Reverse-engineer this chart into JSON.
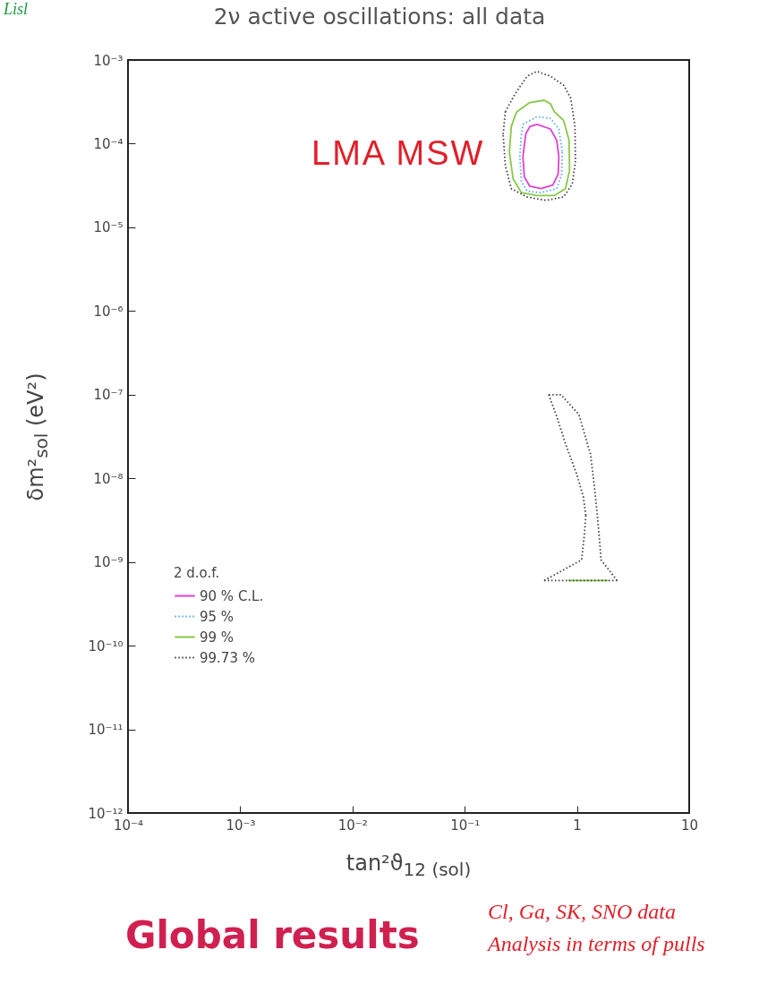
{
  "chart_data": {
    "type": "line",
    "title": "2ν active oscillations: all data",
    "xlabel": "tan²ϑ$_{12 (sol)}$",
    "ylabel": "δm²$_{sol}$ (eV²)",
    "legend_title": "2 d.o.f.",
    "log": "xy",
    "grid": false,
    "legend": "bottom left",
    "marker": "none",
    "xlim": [
      0.0001,
      10
    ],
    "xticks": [
      {
        "value": 0.0001,
        "label": "10⁻⁴"
      },
      {
        "value": 0.001,
        "label": "10⁻³"
      },
      {
        "value": 0.01,
        "label": "10⁻²"
      },
      {
        "value": 0.1,
        "label": "10⁻¹"
      },
      1,
      10
    ],
    "ylim": [
      1e-12,
      0.001
    ],
    "yticks": [
      {
        "value": 1e-12,
        "label": "10⁻¹²"
      },
      {
        "value": 1e-11,
        "label": "10⁻¹¹"
      },
      {
        "value": 1e-10,
        "label": "10⁻¹⁰"
      },
      {
        "value": 1e-09,
        "label": "10⁻⁹"
      },
      {
        "value": 1e-08,
        "label": "10⁻⁸"
      },
      {
        "value": 1e-07,
        "label": "10⁻⁷"
      },
      {
        "value": 1e-06,
        "label": "10⁻⁶"
      },
      {
        "value": 1e-05,
        "label": "10⁻⁵"
      },
      {
        "value": 0.0001,
        "label": "10⁻⁴"
      },
      {
        "value": 0.001,
        "label": "10⁻³"
      }
    ],
    "series": [
      {
        "name": "90 % C.L.",
        "color": "#e040d0",
        "line_style": "solid",
        "x": [
          0.44,
          0.58,
          0.66,
          0.69,
          null,
          0.69,
          0.68,
          0.61,
          0.48,
          0.38,
          0.34,
          0.33,
          null,
          0.33,
          0.35,
          0.38,
          0.44
        ],
        "values": [
          0.00017,
          0.00015,
          0.00011,
          7e-05,
          null,
          7e-05,
          4.3e-05,
          3.2e-05,
          2.9e-05,
          3.1e-05,
          4e-05,
          7e-05,
          null,
          7e-05,
          0.00013,
          0.00016,
          0.00017
        ]
      },
      {
        "name": "95 %",
        "color": "#50a8e8",
        "line_style": "dotted",
        "x": [
          0.33,
          0.44,
          0.58,
          0.69,
          0.74,
          null,
          0.74,
          0.73,
          0.66,
          0.48,
          0.36,
          0.32,
          0.31,
          null,
          0.31,
          0.32,
          0.33
        ],
        "values": [
          0.00017,
          0.00021,
          0.0002,
          0.00015,
          7.9e-05,
          null,
          7.9e-05,
          4.3e-05,
          2.9e-05,
          2.6e-05,
          2.7e-05,
          3.5e-05,
          7e-05,
          null,
          7e-05,
          0.00013,
          0.00017
        ]
      },
      {
        "name": "99 %",
        "color": "#88c848",
        "line_style": "solid",
        "x": [
          0.29,
          0.38,
          0.51,
          0.58,
          0.63,
          0.76,
          0.85,
          0.86,
          null,
          0.86,
          0.79,
          0.63,
          0.44,
          0.32,
          0.27,
          0.25,
          null,
          0.25,
          0.26,
          0.29,
          null,
          0.83,
          1.9
        ],
        "values": [
          0.00024,
          0.00031,
          0.00033,
          0.0003,
          0.00024,
          0.00019,
          0.00011,
          4.8e-05,
          null,
          4.8e-05,
          2.9e-05,
          2.4e-05,
          2.4e-05,
          2.6e-05,
          3.8e-05,
          7.9e-05,
          null,
          7.9e-05,
          0.00016,
          0.00024,
          null,
          6e-10,
          6e-10
        ]
      },
      {
        "name": "99.73 %",
        "color": "#404040",
        "line_style": "dotted",
        "x": [
          0.23,
          0.28,
          0.36,
          0.44,
          0.58,
          0.76,
          0.88,
          0.96,
          0.97,
          null,
          0.97,
          0.91,
          0.76,
          0.53,
          0.36,
          0.26,
          0.23,
          0.22,
          null,
          0.22,
          0.23,
          null,
          0.56,
          0.66,
          0.79,
          1.0,
          1.14,
          1.2,
          null,
          1.2,
          1.16,
          1.1,
          0.51,
          null,
          0.51,
          2.28,
          null,
          2.28,
          1.64,
          1.58,
          1.52,
          1.44,
          1.32,
          1.04,
          0.72,
          0.56
        ],
        "values": [
          0.00024,
          0.00039,
          0.00064,
          0.00073,
          0.00064,
          0.0005,
          0.00035,
          0.00016,
          6.2e-05,
          null,
          6.2e-05,
          3.3e-05,
          2.3e-05,
          2.1e-05,
          2.3e-05,
          2.9e-05,
          5.5e-05,
          0.00013,
          null,
          0.00013,
          0.00024,
          null,
          1e-07,
          5.5e-08,
          2.6e-08,
          1.1e-08,
          6e-09,
          3.6e-09,
          null,
          3.6e-09,
          2e-09,
          1.06e-09,
          6e-10,
          null,
          6e-10,
          6e-10,
          null,
          6e-10,
          1.06e-09,
          2e-09,
          3.6e-09,
          7.3e-09,
          1.95e-08,
          5.8e-08,
          1e-07,
          1e-07
        ]
      }
    ],
    "annotations": [
      "LMA MSW",
      "Lisl",
      "Global results",
      "Cl, Ga, SK, SNO data",
      "Analysis in terms of pulls"
    ]
  }
}
